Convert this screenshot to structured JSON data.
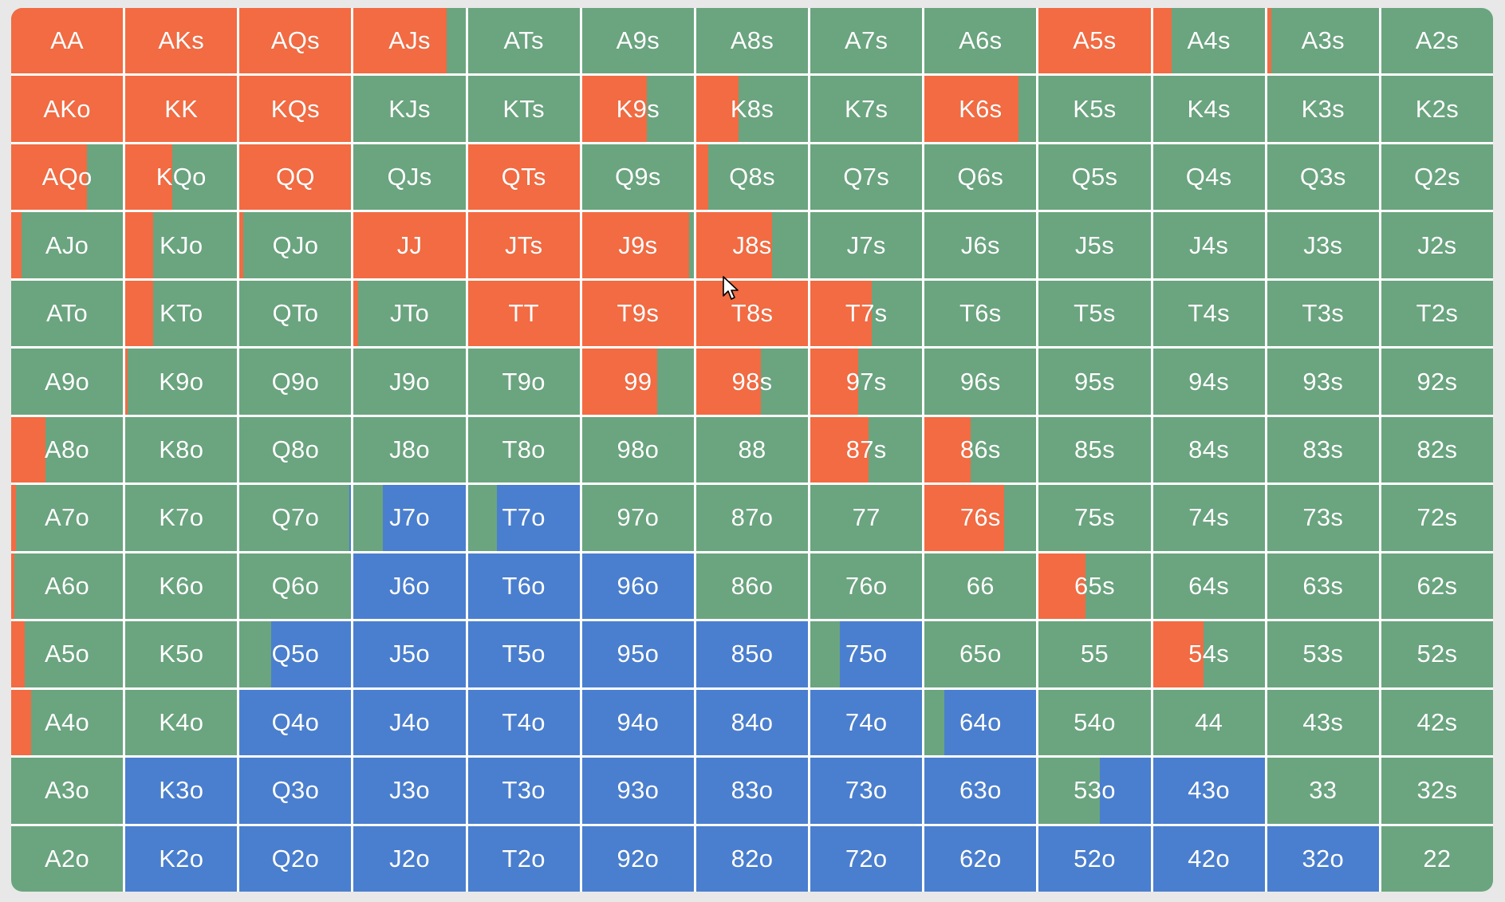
{
  "colors": {
    "raise": "#f26b42",
    "call": "#6aa57f",
    "fold": "#4a7fcf"
  },
  "cursor_icon": "mouse-pointer-icon",
  "rows": [
    {
      "cells": [
        {
          "hand": "AA",
          "raise": 1.0
        },
        {
          "hand": "AKs",
          "raise": 1.0
        },
        {
          "hand": "AQs",
          "raise": 1.0
        },
        {
          "hand": "AJs",
          "raise": 0.83
        },
        {
          "hand": "ATs",
          "raise": 0
        },
        {
          "hand": "A9s",
          "raise": 0
        },
        {
          "hand": "A8s",
          "raise": 0
        },
        {
          "hand": "A7s",
          "raise": 0
        },
        {
          "hand": "A6s",
          "raise": 0
        },
        {
          "hand": "A5s",
          "raise": 1.0
        },
        {
          "hand": "A4s",
          "raise": 0.17
        },
        {
          "hand": "A3s",
          "raise": 0.04
        },
        {
          "hand": "A2s",
          "raise": 0
        }
      ]
    },
    {
      "cells": [
        {
          "hand": "AKo",
          "raise": 1.0
        },
        {
          "hand": "KK",
          "raise": 1.0
        },
        {
          "hand": "KQs",
          "raise": 1.0
        },
        {
          "hand": "KJs",
          "raise": 0
        },
        {
          "hand": "KTs",
          "raise": 0
        },
        {
          "hand": "K9s",
          "raise": 0.58
        },
        {
          "hand": "K8s",
          "raise": 0.38
        },
        {
          "hand": "K7s",
          "raise": 0
        },
        {
          "hand": "K6s",
          "raise": 0.84
        },
        {
          "hand": "K5s",
          "raise": 0
        },
        {
          "hand": "K4s",
          "raise": 0
        },
        {
          "hand": "K3s",
          "raise": 0
        },
        {
          "hand": "K2s",
          "raise": 0
        }
      ]
    },
    {
      "cells": [
        {
          "hand": "AQo",
          "raise": 0.68
        },
        {
          "hand": "KQo",
          "raise": 0.42
        },
        {
          "hand": "QQ",
          "raise": 1.0
        },
        {
          "hand": "QJs",
          "raise": 0
        },
        {
          "hand": "QTs",
          "raise": 1.0
        },
        {
          "hand": "Q9s",
          "raise": 0
        },
        {
          "hand": "Q8s",
          "raise": 0.11
        },
        {
          "hand": "Q7s",
          "raise": 0
        },
        {
          "hand": "Q6s",
          "raise": 0
        },
        {
          "hand": "Q5s",
          "raise": 0
        },
        {
          "hand": "Q4s",
          "raise": 0
        },
        {
          "hand": "Q3s",
          "raise": 0
        },
        {
          "hand": "Q2s",
          "raise": 0
        }
      ]
    },
    {
      "cells": [
        {
          "hand": "AJo",
          "raise": 0.09
        },
        {
          "hand": "KJo",
          "raise": 0.25
        },
        {
          "hand": "QJo",
          "raise": 0.03
        },
        {
          "hand": "JJ",
          "raise": 1.0
        },
        {
          "hand": "JTs",
          "raise": 1.0
        },
        {
          "hand": "J9s",
          "raise": 0.96
        },
        {
          "hand": "J8s",
          "raise": 0.68
        },
        {
          "hand": "J7s",
          "raise": 0
        },
        {
          "hand": "J6s",
          "raise": 0
        },
        {
          "hand": "J5s",
          "raise": 0
        },
        {
          "hand": "J4s",
          "raise": 0
        },
        {
          "hand": "J3s",
          "raise": 0
        },
        {
          "hand": "J2s",
          "raise": 0
        }
      ]
    },
    {
      "cells": [
        {
          "hand": "ATo",
          "raise": 0
        },
        {
          "hand": "KTo",
          "raise": 0.25
        },
        {
          "hand": "QTo",
          "raise": 0
        },
        {
          "hand": "JTo",
          "raise": 0.04
        },
        {
          "hand": "TT",
          "raise": 1.0
        },
        {
          "hand": "T9s",
          "raise": 1.0
        },
        {
          "hand": "T8s",
          "raise": 1.0
        },
        {
          "hand": "T7s",
          "raise": 0.55
        },
        {
          "hand": "T6s",
          "raise": 0
        },
        {
          "hand": "T5s",
          "raise": 0
        },
        {
          "hand": "T4s",
          "raise": 0
        },
        {
          "hand": "T3s",
          "raise": 0
        },
        {
          "hand": "T2s",
          "raise": 0
        }
      ]
    },
    {
      "cells": [
        {
          "hand": "A9o",
          "raise": 0
        },
        {
          "hand": "K9o",
          "raise": 0.02
        },
        {
          "hand": "Q9o",
          "raise": 0
        },
        {
          "hand": "J9o",
          "raise": 0
        },
        {
          "hand": "T9o",
          "raise": 0
        },
        {
          "hand": "99",
          "raise": 0.67
        },
        {
          "hand": "98s",
          "raise": 0.58
        },
        {
          "hand": "97s",
          "raise": 0.43
        },
        {
          "hand": "96s",
          "raise": 0
        },
        {
          "hand": "95s",
          "raise": 0
        },
        {
          "hand": "94s",
          "raise": 0
        },
        {
          "hand": "93s",
          "raise": 0
        },
        {
          "hand": "92s",
          "raise": 0
        }
      ]
    },
    {
      "cells": [
        {
          "hand": "A8o",
          "raise": 0.31
        },
        {
          "hand": "K8o",
          "raise": 0
        },
        {
          "hand": "Q8o",
          "raise": 0
        },
        {
          "hand": "J8o",
          "raise": 0
        },
        {
          "hand": "T8o",
          "raise": 0
        },
        {
          "hand": "98o",
          "raise": 0
        },
        {
          "hand": "88",
          "raise": 0
        },
        {
          "hand": "87s",
          "raise": 0.52
        },
        {
          "hand": "86s",
          "raise": 0.41
        },
        {
          "hand": "85s",
          "raise": 0
        },
        {
          "hand": "84s",
          "raise": 0
        },
        {
          "hand": "83s",
          "raise": 0
        },
        {
          "hand": "82s",
          "raise": 0
        }
      ]
    },
    {
      "cells": [
        {
          "hand": "A7o",
          "raise": 0.04
        },
        {
          "hand": "K7o",
          "raise": 0
        },
        {
          "hand": "Q7o",
          "raise": 0,
          "fold": 0.02
        },
        {
          "hand": "J7o",
          "raise": 0,
          "fold": 0.74
        },
        {
          "hand": "T7o",
          "raise": 0,
          "fold": 0.74
        },
        {
          "hand": "97o",
          "raise": 0
        },
        {
          "hand": "87o",
          "raise": 0
        },
        {
          "hand": "77",
          "raise": 0
        },
        {
          "hand": "76s",
          "raise": 0.71
        },
        {
          "hand": "75s",
          "raise": 0
        },
        {
          "hand": "74s",
          "raise": 0
        },
        {
          "hand": "73s",
          "raise": 0
        },
        {
          "hand": "72s",
          "raise": 0
        }
      ]
    },
    {
      "cells": [
        {
          "hand": "A6o",
          "raise": 0.03
        },
        {
          "hand": "K6o",
          "raise": 0
        },
        {
          "hand": "Q6o",
          "raise": 0
        },
        {
          "hand": "J6o",
          "raise": 0,
          "fold": 1.0
        },
        {
          "hand": "T6o",
          "raise": 0,
          "fold": 1.0
        },
        {
          "hand": "96o",
          "raise": 0,
          "fold": 1.0
        },
        {
          "hand": "86o",
          "raise": 0
        },
        {
          "hand": "76o",
          "raise": 0
        },
        {
          "hand": "66",
          "raise": 0
        },
        {
          "hand": "65s",
          "raise": 0.42
        },
        {
          "hand": "64s",
          "raise": 0
        },
        {
          "hand": "63s",
          "raise": 0
        },
        {
          "hand": "62s",
          "raise": 0
        }
      ]
    },
    {
      "cells": [
        {
          "hand": "A5o",
          "raise": 0.12
        },
        {
          "hand": "K5o",
          "raise": 0
        },
        {
          "hand": "Q5o",
          "raise": 0,
          "fold": 0.72
        },
        {
          "hand": "J5o",
          "raise": 0,
          "fold": 1.0
        },
        {
          "hand": "T5o",
          "raise": 0,
          "fold": 1.0
        },
        {
          "hand": "95o",
          "raise": 0,
          "fold": 1.0
        },
        {
          "hand": "85o",
          "raise": 0,
          "fold": 1.0
        },
        {
          "hand": "75o",
          "raise": 0,
          "fold": 0.74
        },
        {
          "hand": "65o",
          "raise": 0
        },
        {
          "hand": "55",
          "raise": 0
        },
        {
          "hand": "54s",
          "raise": 0.45
        },
        {
          "hand": "53s",
          "raise": 0
        },
        {
          "hand": "52s",
          "raise": 0
        }
      ]
    },
    {
      "cells": [
        {
          "hand": "A4o",
          "raise": 0.18
        },
        {
          "hand": "K4o",
          "raise": 0
        },
        {
          "hand": "Q4o",
          "raise": 0,
          "fold": 1.0
        },
        {
          "hand": "J4o",
          "raise": 0,
          "fold": 1.0
        },
        {
          "hand": "T4o",
          "raise": 0,
          "fold": 1.0
        },
        {
          "hand": "94o",
          "raise": 0,
          "fold": 1.0
        },
        {
          "hand": "84o",
          "raise": 0,
          "fold": 1.0
        },
        {
          "hand": "74o",
          "raise": 0,
          "fold": 1.0
        },
        {
          "hand": "64o",
          "raise": 0,
          "fold": 0.82
        },
        {
          "hand": "54o",
          "raise": 0
        },
        {
          "hand": "44",
          "raise": 0
        },
        {
          "hand": "43s",
          "raise": 0
        },
        {
          "hand": "42s",
          "raise": 0
        }
      ]
    },
    {
      "cells": [
        {
          "hand": "A3o",
          "raise": 0
        },
        {
          "hand": "K3o",
          "raise": 0,
          "fold": 1.0
        },
        {
          "hand": "Q3o",
          "raise": 0,
          "fold": 1.0
        },
        {
          "hand": "J3o",
          "raise": 0,
          "fold": 1.0
        },
        {
          "hand": "T3o",
          "raise": 0,
          "fold": 1.0
        },
        {
          "hand": "93o",
          "raise": 0,
          "fold": 1.0
        },
        {
          "hand": "83o",
          "raise": 0,
          "fold": 1.0
        },
        {
          "hand": "73o",
          "raise": 0,
          "fold": 1.0
        },
        {
          "hand": "63o",
          "raise": 0,
          "fold": 1.0
        },
        {
          "hand": "53o",
          "raise": 0,
          "fold": 0.45
        },
        {
          "hand": "43o",
          "raise": 0,
          "fold": 1.0
        },
        {
          "hand": "33",
          "raise": 0
        },
        {
          "hand": "32s",
          "raise": 0
        }
      ]
    },
    {
      "cells": [
        {
          "hand": "A2o",
          "raise": 0
        },
        {
          "hand": "K2o",
          "raise": 0,
          "fold": 1.0
        },
        {
          "hand": "Q2o",
          "raise": 0,
          "fold": 1.0
        },
        {
          "hand": "J2o",
          "raise": 0,
          "fold": 1.0
        },
        {
          "hand": "T2o",
          "raise": 0,
          "fold": 1.0
        },
        {
          "hand": "92o",
          "raise": 0,
          "fold": 1.0
        },
        {
          "hand": "82o",
          "raise": 0,
          "fold": 1.0
        },
        {
          "hand": "72o",
          "raise": 0,
          "fold": 1.0
        },
        {
          "hand": "62o",
          "raise": 0,
          "fold": 1.0
        },
        {
          "hand": "52o",
          "raise": 0,
          "fold": 1.0
        },
        {
          "hand": "42o",
          "raise": 0,
          "fold": 1.0
        },
        {
          "hand": "32o",
          "raise": 0,
          "fold": 1.0
        },
        {
          "hand": "22",
          "raise": 0
        }
      ]
    }
  ]
}
